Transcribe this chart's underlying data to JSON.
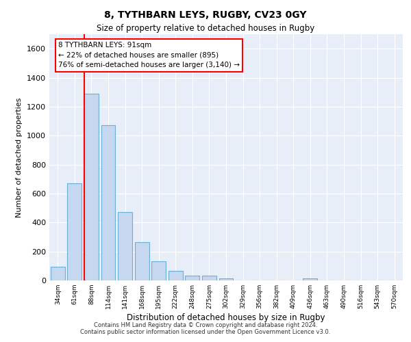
{
  "title_line1": "8, TYTHBARN LEYS, RUGBY, CV23 0GY",
  "title_line2": "Size of property relative to detached houses in Rugby",
  "xlabel": "Distribution of detached houses by size in Rugby",
  "ylabel": "Number of detached properties",
  "bar_labels": [
    "34sqm",
    "61sqm",
    "88sqm",
    "114sqm",
    "141sqm",
    "168sqm",
    "195sqm",
    "222sqm",
    "248sqm",
    "275sqm",
    "302sqm",
    "329sqm",
    "356sqm",
    "382sqm",
    "409sqm",
    "436sqm",
    "463sqm",
    "490sqm",
    "516sqm",
    "543sqm",
    "570sqm"
  ],
  "bar_values": [
    95,
    670,
    1290,
    1070,
    470,
    265,
    130,
    68,
    32,
    35,
    15,
    0,
    0,
    0,
    0,
    15,
    0,
    0,
    0,
    0,
    0
  ],
  "bar_color": "#c5d8ef",
  "bar_edge_color": "#6baed6",
  "ylim": [
    0,
    1700
  ],
  "yticks": [
    0,
    200,
    400,
    600,
    800,
    1000,
    1200,
    1400,
    1600
  ],
  "vline_x": 2,
  "annotation_text": "8 TYTHBARN LEYS: 91sqm\n← 22% of detached houses are smaller (895)\n76% of semi-detached houses are larger (3,140) →",
  "footer_text": "Contains HM Land Registry data © Crown copyright and database right 2024.\nContains public sector information licensed under the Open Government Licence v3.0.",
  "bg_color": "#e8eef8",
  "grid_color": "#d0d8e8"
}
